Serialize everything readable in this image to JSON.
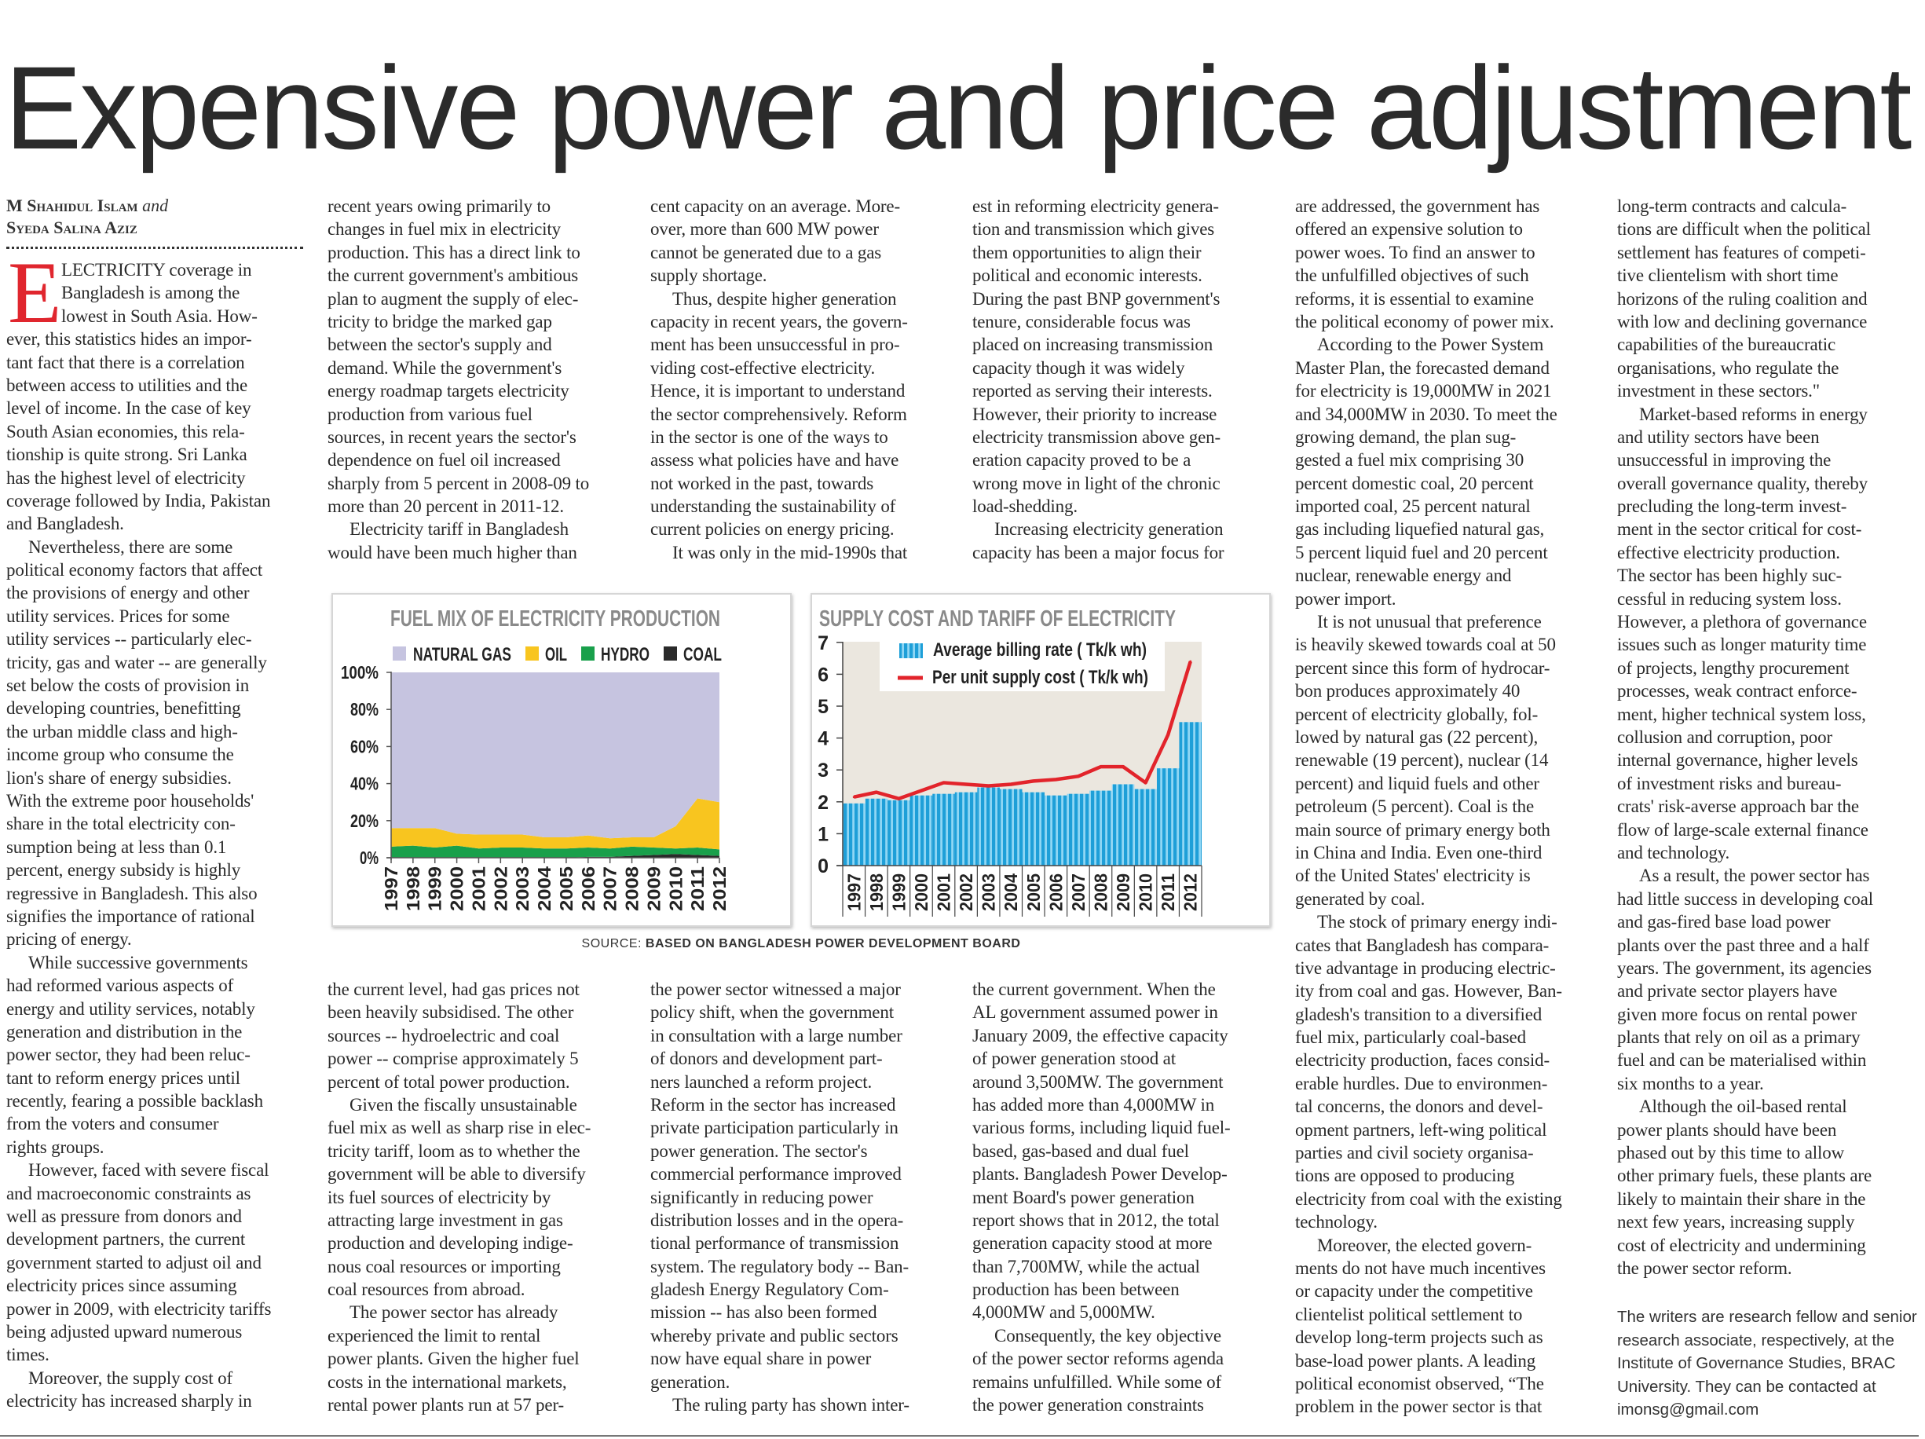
{
  "headline": "Expensive power and price adjustment",
  "byline": {
    "author1": "M Shahidul Islam",
    "and": "and",
    "author2": "Syeda Salina Aziz"
  },
  "drop_cap": "E",
  "columns": {
    "col1": {
      "paragraphs": [
        {
          "lines": [
            "LECTRICITY coverage in",
            "Bangladesh is among the",
            "lowest in South Asia. How-",
            "ever, this statistics hides an impor-",
            "tant fact that there is a correlation",
            "between access to utilities and the",
            "level of income. In the case of key",
            "South Asian economies, this rela-",
            "tionship is quite strong. Sri Lanka",
            "has the highest level of electricity",
            "coverage followed by India, Pakistan",
            "and Bangladesh."
          ]
        },
        {
          "lines": [
            "Nevertheless, there are some",
            "political economy factors that affect",
            "the provisions of energy and other",
            "utility services. Prices for some",
            "utility services -- particularly elec-",
            "tricity, gas and water -- are generally",
            "set below the costs of provision in",
            "developing countries, benefitting",
            "the urban middle class and high-",
            "income group who consume the",
            "lion's share of energy subsidies.",
            "With the extreme poor households'",
            "share in the total electricity con-",
            "sumption being at less than 0.1",
            "percent, energy subsidy is highly",
            "regressive in Bangladesh. This also",
            "signifies the importance of rational",
            "pricing of energy."
          ]
        },
        {
          "lines": [
            "While successive governments",
            "had reformed various aspects of",
            "energy and utility services, notably",
            "generation and distribution in the",
            "power sector, they had been reluc-",
            "tant to reform energy prices until",
            "recently, fearing a possible backlash",
            "from the voters and consumer",
            "rights groups."
          ]
        },
        {
          "lines": [
            "However, faced with severe fiscal",
            "and macroeconomic constraints as",
            "well as pressure from donors and",
            "development partners, the current",
            "government started to adjust oil and",
            "electricity prices since assuming",
            "power in 2009, with electricity tariffs",
            "being adjusted upward numerous",
            "times."
          ]
        },
        {
          "lines": [
            "Moreover, the supply cost of",
            "electricity has increased sharply in"
          ]
        }
      ]
    },
    "col2_top": {
      "paragraphs": [
        {
          "lines": [
            "recent years owing primarily to",
            "changes in fuel mix in electricity",
            "production. This has a direct link to",
            "the current government's ambitious",
            "plan to augment the supply of elec-",
            "tricity to bridge the marked gap",
            "between the sector's supply and",
            "demand. While the government's",
            "energy roadmap targets electricity",
            "production from various fuel",
            "sources, in recent years the sector's",
            "dependence on fuel oil increased",
            "sharply from 5 percent in 2008-09 to",
            "more than 20 percent in 2011-12."
          ]
        },
        {
          "lines": [
            "Electricity tariff in Bangladesh",
            "would have been much higher than"
          ]
        }
      ]
    },
    "col3_top": {
      "paragraphs": [
        {
          "lines": [
            "cent capacity on an average. More-",
            "over, more than 600 MW power",
            "cannot be generated due to a gas",
            "supply shortage."
          ]
        },
        {
          "lines": [
            "Thus, despite higher generation",
            "capacity in recent years, the govern-",
            "ment has been unsuccessful in pro-",
            "viding cost-effective electricity.",
            "Hence, it is important to understand",
            "the sector comprehensively. Reform",
            "in the sector is one of the ways to",
            "assess what policies have and have",
            "not worked in the past, towards",
            "understanding the sustainability of",
            "current policies on energy pricing."
          ]
        },
        {
          "lines": [
            "It was only in the mid-1990s that"
          ]
        }
      ]
    },
    "col4_top": {
      "paragraphs": [
        {
          "lines": [
            "est in reforming electricity genera-",
            "tion and transmission which gives",
            "them opportunities to align their",
            "political and economic interests.",
            "During the past BNP government's",
            "tenure, considerable focus was",
            "placed on increasing transmission",
            "capacity though it was widely",
            "reported as serving their interests.",
            "However, their priority to increase",
            "electricity transmission above gen-",
            "eration capacity proved to be a",
            "wrong move in light of the chronic",
            "load-shedding."
          ]
        },
        {
          "lines": [
            "Increasing electricity generation",
            "capacity has been a major focus for"
          ]
        }
      ]
    },
    "col2_bottom": {
      "paragraphs": [
        {
          "lines": [
            "the current level, had gas prices not",
            "been heavily subsidised. The other",
            "sources -- hydroelectric and coal",
            "power -- comprise approximately 5",
            "percent of total power production."
          ]
        },
        {
          "lines": [
            "Given the fiscally unsustainable",
            "fuel mix as well as sharp rise in elec-",
            "tricity tariff, loom as to whether the",
            "government will be able to diversify",
            "its fuel sources of electricity by",
            "attracting large investment in gas",
            "production and developing indige-",
            "nous coal resources or importing",
            "coal resources from abroad."
          ]
        },
        {
          "lines": [
            "The power sector has already",
            "experienced the limit to rental",
            "power plants. Given the higher fuel",
            "costs in the international markets,",
            "rental power plants run at 57 per-"
          ]
        }
      ]
    },
    "col3_bottom": {
      "paragraphs": [
        {
          "lines": [
            "the power sector witnessed a major",
            "policy shift, when the government",
            "in consultation with a large number",
            "of donors and development part-",
            "ners launched a reform project.",
            "Reform in the sector has increased",
            "private participation particularly in",
            "power generation. The sector's",
            "commercial performance improved",
            "significantly in reducing power",
            "distribution losses and in the opera-",
            "tional performance of transmission",
            "system. The regulatory body -- Ban-",
            "gladesh Energy Regulatory Com-",
            "mission -- has also been formed",
            "whereby private and public sectors",
            "now have equal share in power",
            "generation."
          ]
        },
        {
          "lines": [
            "The ruling party has shown inter-"
          ]
        }
      ]
    },
    "col4_bottom": {
      "paragraphs": [
        {
          "lines": [
            "the current government. When the",
            "AL government assumed power in",
            "January 2009, the effective capacity",
            "of power generation stood at",
            "around 3,500MW. The government",
            "has added more than 4,000MW in",
            "various forms, including liquid fuel-",
            "based, gas-based and dual fuel",
            "plants. Bangladesh Power Develop-",
            "ment Board's power generation",
            "report shows that in 2012, the total",
            "generation capacity stood at more",
            "than 7,700MW, while the actual",
            "production has been between",
            "4,000MW and 5,000MW."
          ]
        },
        {
          "lines": [
            "Consequently, the key objective",
            "of the power sector reforms agenda",
            "remains unfulfilled. While some of",
            "the power generation constraints"
          ]
        }
      ]
    },
    "col5": {
      "paragraphs": [
        {
          "lines": [
            "are addressed, the government has",
            "offered an expensive solution to",
            "power woes. To find an answer to",
            "the unfulfilled objectives of such",
            "reforms, it is essential to examine",
            "the political economy of power mix."
          ]
        },
        {
          "lines": [
            "According to the Power System",
            "Master Plan, the forecasted demand",
            "for electricity is 19,000MW in 2021",
            "and 34,000MW in 2030. To meet the",
            "growing demand, the plan sug-",
            "gested a fuel mix comprising 30",
            "percent domestic coal, 20 percent",
            "imported coal, 25 percent natural",
            "gas including liquefied natural gas,",
            "5 percent liquid fuel and 20 percent",
            "nuclear, renewable energy and",
            "power import."
          ]
        },
        {
          "lines": [
            "It is not unusual that preference",
            "is heavily skewed towards coal at 50",
            "percent since this form of hydrocar-",
            "bon produces approximately 40",
            "percent of electricity globally, fol-",
            "lowed by natural gas (22 percent),",
            "renewable (19 percent), nuclear (14",
            "percent) and liquid fuels and other",
            "petroleum (5 percent). Coal is the",
            "main source of primary energy both",
            "in China and India. Even one-third",
            "of the United States' electricity is",
            "generated by coal."
          ]
        },
        {
          "lines": [
            "The stock of primary energy indi-",
            "cates that Bangladesh has compara-",
            "tive advantage in producing electric-",
            "ity from coal and gas. However, Ban-",
            "gladesh's transition to a diversified",
            "fuel mix, particularly coal-based",
            "electricity production, faces consid-",
            "erable hurdles. Due to environmen-",
            "tal concerns, the donors and devel-",
            "opment partners, left-wing political",
            "parties and civil society organisa-",
            "tions are opposed to producing",
            "electricity from coal with the existing",
            "technology."
          ]
        },
        {
          "lines": [
            "Moreover, the elected govern-",
            "ments do not have much incentives",
            "or capacity under the competitive",
            "clientelist political settlement to",
            "develop long-term projects such as",
            "base-load power plants. A leading",
            "political economist observed, “The",
            "problem in the power sector is that"
          ]
        }
      ]
    },
    "col6": {
      "paragraphs": [
        {
          "lines": [
            "long-term contracts and calcula-",
            "tions are difficult when the political",
            "settlement has features of competi-",
            "tive clientelism with short time",
            "horizons of the ruling coalition and",
            "with low and declining governance",
            "capabilities of the bureaucratic",
            "organisations, who regulate the",
            "investment in these sectors.\""
          ]
        },
        {
          "lines": [
            "Market-based reforms in energy",
            "and utility sectors have been",
            "unsuccessful in improving the",
            "overall governance quality, thereby",
            "precluding the long-term invest-",
            "ment in the sector critical for cost-",
            "effective electricity production.",
            "The sector has been highly suc-",
            "cessful in reducing system loss.",
            "However, a plethora of governance",
            "issues such as longer maturity time",
            "of projects, lengthy procurement",
            "processes, weak contract enforce-",
            "ment, higher technical system loss,",
            "collusion and corruption, poor",
            "internal governance, higher levels",
            "of investment risks and bureau-",
            "crats' risk-averse approach bar the",
            "flow of large-scale external finance",
            "and technology."
          ]
        },
        {
          "lines": [
            "As a result, the power sector has",
            "had little success in developing coal",
            "and gas-fired base load power",
            "plants over the past three and a half",
            "years. The government, its agencies",
            "and private sector players have",
            "given more focus on rental power",
            "plants that rely on oil as a primary",
            "fuel and can be materialised within",
            "six months to a year."
          ]
        },
        {
          "lines": [
            "Although the oil-based rental",
            "power plants should have been",
            "phased out by this time to allow",
            "other primary fuels, these plants are",
            "likely to maintain their share in the",
            "next few years, increasing supply",
            "cost of electricity and undermining",
            "the power sector reform."
          ]
        }
      ]
    }
  },
  "source": {
    "label": "SOURCE:",
    "text": "BASED ON BANGLADESH POWER DEVELOPMENT BOARD"
  },
  "footnote": [
    "The writers are research fellow and senior",
    "research associate, respectively, at the",
    "Institute of Governance Studies, BRAC",
    "University. They can be contacted at",
    "imonsg@gmail.com"
  ],
  "chart_data": [
    {
      "type": "area",
      "stacked": true,
      "title": "FUEL MIX OF ELECTRICITY PRODUCTION",
      "categories": [
        "1997",
        "1998",
        "1999",
        "2000",
        "2001",
        "2002",
        "2003",
        "2004",
        "2005",
        "2006",
        "2007",
        "2008",
        "2009",
        "2010",
        "2011",
        "2012"
      ],
      "yticks": [
        "0%",
        "20%",
        "40%",
        "60%",
        "80%",
        "100%"
      ],
      "ylim": [
        0,
        100
      ],
      "legend_position": "top",
      "series": [
        {
          "name": "COAL",
          "color": "#2a2a2a",
          "values": [
            0,
            0,
            0,
            0,
            0,
            0,
            0,
            0,
            0,
            0.5,
            0.5,
            1,
            1.5,
            2,
            1.5,
            1
          ]
        },
        {
          "name": "HYDRO",
          "color": "#19a04b",
          "values": [
            6,
            6.5,
            5.5,
            6.5,
            5,
            5.5,
            5.5,
            5,
            5,
            5,
            4.5,
            5,
            4,
            3,
            4,
            3.5
          ]
        },
        {
          "name": "OIL",
          "color": "#f8c51f",
          "values": [
            10,
            9.5,
            10.5,
            6.5,
            7.5,
            7,
            7,
            6,
            6,
            6.5,
            5.5,
            5,
            5.5,
            12,
            26.5,
            25.5
          ]
        },
        {
          "name": "NATURAL GAS",
          "color": "#c6c4e0",
          "values": [
            84,
            84,
            84,
            87,
            87.5,
            87.5,
            87.5,
            89,
            89,
            88,
            89.5,
            89,
            89,
            83,
            68,
            70
          ]
        }
      ],
      "legend_order": [
        "NATURAL GAS",
        "OIL",
        "HYDRO",
        "COAL"
      ]
    },
    {
      "type": "bar+line",
      "title": "SUPPLY COST AND TARIFF OF ELECTRICITY",
      "categories": [
        "1997",
        "1998",
        "1999",
        "2000",
        "2001",
        "2002",
        "2003",
        "2004",
        "2005",
        "2006",
        "2007",
        "2008",
        "2009",
        "2010",
        "2011",
        "2012"
      ],
      "yticks": [
        "0",
        "1",
        "2",
        "3",
        "4",
        "5",
        "6",
        "7"
      ],
      "ylim": [
        0,
        7
      ],
      "legend_position": "top",
      "series": [
        {
          "name": "Average billing rate ( Tk/k wh)",
          "kind": "bar",
          "color": "#1e9fd8",
          "values": [
            1.95,
            2.1,
            2.05,
            2.2,
            2.25,
            2.3,
            2.45,
            2.4,
            2.3,
            2.2,
            2.25,
            2.35,
            2.55,
            2.4,
            3.05,
            4.5
          ]
        },
        {
          "name": "Per unit supply cost ( Tk/k wh)",
          "kind": "line",
          "color": "#e2242b",
          "values": [
            2.15,
            2.3,
            2.1,
            2.35,
            2.6,
            2.55,
            2.5,
            2.55,
            2.65,
            2.7,
            2.8,
            3.1,
            3.1,
            2.6,
            4.1,
            6.4
          ]
        }
      ]
    }
  ]
}
